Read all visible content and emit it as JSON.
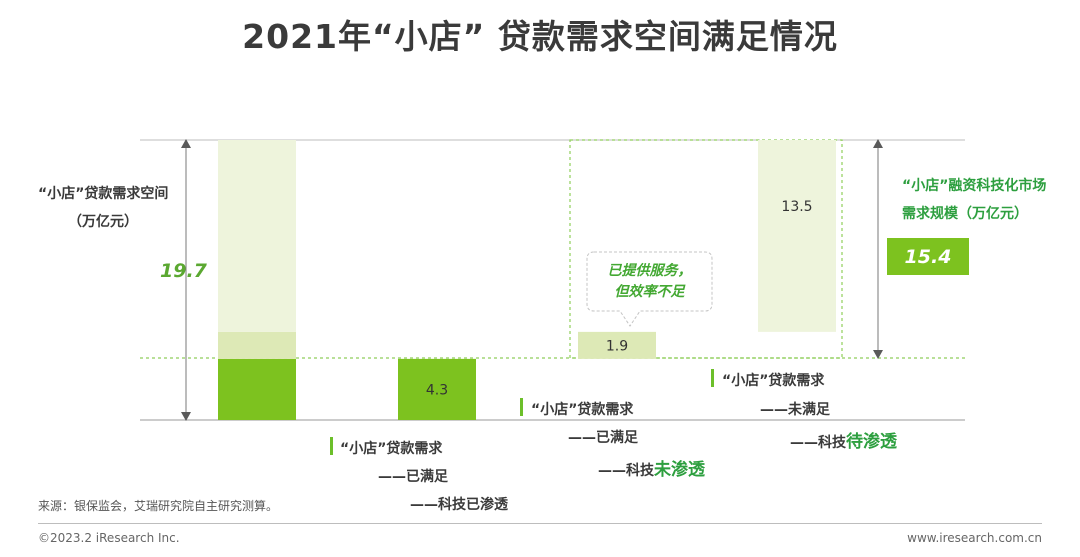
{
  "title": "2021年“小店” 贷款需求空间满足情况",
  "left_label": [
    "“小店”贷款需求空间",
    "（万亿元）"
  ],
  "left_total": "19.7",
  "right_label": [
    "“小店”融资科技化市场",
    "需求规模（万亿元）"
  ],
  "right_total": "15.4",
  "callout": [
    "已提供服务，",
    "但效率不足"
  ],
  "labels": {
    "bar2": [
      "“小店”贷款需求",
      "——已满足",
      "——科技"
    ],
    "bar2_highlight": "已渗透",
    "bar3": [
      "“小店”贷款需求",
      "——已满足",
      "——科技"
    ],
    "bar3_highlight": "未渗透",
    "bar4": [
      "“小店”贷款需求",
      "——未满足",
      "——科技"
    ],
    "bar4_highlight": "待渗透"
  },
  "source": "来源：银保监会，艾瑞研究院自主研究测算。",
  "footer_left": "©2023.2 iResearch Inc.",
  "footer_right": "www.iresearch.com.cn",
  "colors": {
    "accent": "#7dc21f",
    "text_green": "#2d9f3f",
    "pale": "#eef4dc",
    "light": "#dde9b6"
  },
  "chart_data": {
    "type": "bar",
    "subtype": "waterfall",
    "unit": "万亿元",
    "total": 19.7,
    "categories": [
      "“小店”贷款需求空间",
      "已满足-科技已渗透",
      "已满足-科技未渗透",
      "未满足-科技待渗透"
    ],
    "values": [
      19.7,
      4.3,
      1.9,
      13.5
    ],
    "data_labels": [
      "",
      "4.3",
      "1.9",
      "13.5"
    ],
    "market_size": 15.4
  }
}
